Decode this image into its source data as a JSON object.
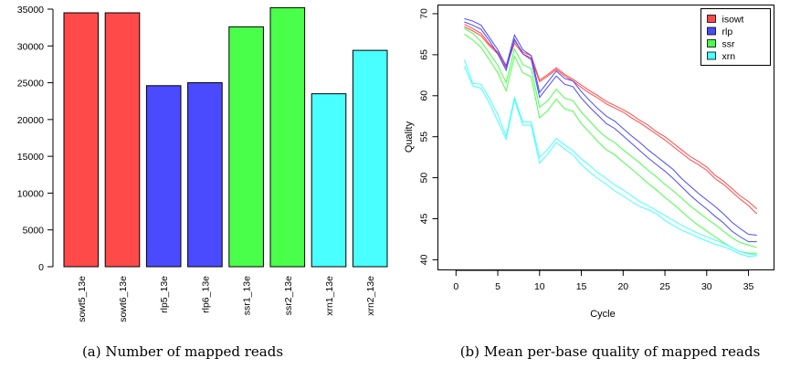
{
  "chart_data": [
    {
      "type": "bar",
      "categories": [
        "sowt5_13e",
        "sowt6_13e",
        "rlp5_13e",
        "rlp6_13e",
        "ssr1_13e",
        "ssr2_13e",
        "xrn1_13e",
        "xrn2_13e"
      ],
      "values": [
        34500,
        34500,
        24600,
        25000,
        32600,
        35200,
        23500,
        29400
      ],
      "colors": [
        "#ff4a4a",
        "#ff4a4a",
        "#4a4aff",
        "#4a4aff",
        "#4aff4a",
        "#4aff4a",
        "#4affff",
        "#4affff"
      ],
      "ylim": [
        0,
        35000
      ],
      "yticks": [
        0,
        5000,
        10000,
        15000,
        20000,
        25000,
        30000,
        35000
      ],
      "caption": "(a)  Number of mapped reads"
    },
    {
      "type": "line",
      "xlabel": "Cycle",
      "ylabel": "Quality",
      "xlim": [
        0,
        36
      ],
      "ylim": [
        40,
        70
      ],
      "xticks": [
        0,
        5,
        10,
        15,
        20,
        25,
        30,
        35
      ],
      "yticks": [
        40,
        45,
        50,
        55,
        60,
        65,
        70
      ],
      "legend": {
        "position": "top-right",
        "entries": [
          {
            "label": "isowt",
            "color": "#ff4a4a"
          },
          {
            "label": "rlp",
            "color": "#4a4aff"
          },
          {
            "label": "ssr",
            "color": "#4aff4a"
          },
          {
            "label": "xrn",
            "color": "#4affff"
          }
        ]
      },
      "series": [
        {
          "group": "isowt",
          "color": "#ff4a4a",
          "values": [
            68.7,
            68.2,
            67.6,
            66.3,
            65.3,
            63.7,
            66.7,
            65.3,
            64.9,
            61.9,
            62.6,
            63.4,
            62.6,
            62.0,
            61.3,
            60.6,
            60.0,
            59.3,
            58.8,
            58.3,
            57.7,
            57.0,
            56.4,
            55.6,
            55.0,
            54.2,
            53.4,
            52.6,
            52.0,
            51.3,
            50.3,
            49.6,
            48.7,
            47.8,
            47.1,
            46.2
          ]
        },
        {
          "group": "isowt",
          "color": "#ff4a4a",
          "values": [
            68.4,
            67.9,
            67.3,
            66.1,
            65.1,
            63.4,
            66.4,
            65.1,
            64.6,
            61.7,
            62.4,
            63.2,
            62.4,
            61.8,
            61.0,
            60.3,
            59.7,
            59.0,
            58.5,
            58.0,
            57.3,
            56.7,
            56.0,
            55.3,
            54.6,
            53.8,
            53.0,
            52.2,
            51.6,
            50.9,
            49.9,
            49.2,
            48.3,
            47.4,
            46.6,
            45.6
          ]
        },
        {
          "group": "rlp",
          "color": "#4a4aff",
          "values": [
            69.4,
            69.1,
            68.6,
            67.1,
            65.6,
            63.6,
            67.4,
            65.6,
            64.9,
            60.4,
            61.7,
            63.0,
            62.1,
            61.8,
            60.5,
            59.4,
            58.4,
            57.5,
            56.9,
            56.0,
            55.1,
            54.3,
            53.4,
            52.6,
            51.8,
            51.0,
            49.9,
            49.0,
            48.1,
            47.3,
            46.5,
            45.6,
            44.6,
            43.8,
            43.1,
            43.0
          ]
        },
        {
          "group": "rlp",
          "color": "#4a4aff",
          "values": [
            69.0,
            68.6,
            68.1,
            66.7,
            65.1,
            63.1,
            66.9,
            65.1,
            64.4,
            59.8,
            61.1,
            62.4,
            61.4,
            61.1,
            59.7,
            58.6,
            57.6,
            56.6,
            56.0,
            55.1,
            54.2,
            53.3,
            52.4,
            51.6,
            50.8,
            49.9,
            48.9,
            47.9,
            47.0,
            46.2,
            45.3,
            44.5,
            43.5,
            42.8,
            42.2,
            42.2
          ]
        },
        {
          "group": "ssr",
          "color": "#4aff4a",
          "values": [
            68.2,
            67.6,
            66.6,
            65.2,
            63.7,
            61.6,
            65.7,
            63.8,
            63.3,
            58.6,
            59.4,
            60.8,
            59.7,
            59.4,
            58.0,
            56.9,
            55.8,
            54.9,
            54.3,
            53.4,
            52.6,
            51.8,
            50.9,
            50.1,
            49.2,
            48.4,
            47.5,
            46.6,
            45.8,
            45.0,
            44.3,
            43.5,
            42.7,
            42.1,
            41.8,
            41.5
          ]
        },
        {
          "group": "ssr",
          "color": "#4aff4a",
          "values": [
            67.5,
            66.8,
            65.9,
            64.4,
            62.8,
            60.6,
            64.8,
            62.8,
            62.3,
            57.3,
            58.2,
            59.6,
            58.4,
            58.1,
            56.6,
            55.5,
            54.4,
            53.4,
            52.8,
            51.9,
            51.1,
            50.2,
            49.3,
            48.5,
            47.6,
            46.8,
            45.9,
            45.0,
            44.2,
            43.5,
            42.8,
            42.1,
            41.5,
            41.0,
            40.8,
            40.8
          ]
        },
        {
          "group": "xrn",
          "color": "#4affff",
          "values": [
            64.4,
            61.5,
            61.4,
            59.7,
            57.7,
            55.1,
            59.8,
            56.8,
            56.8,
            52.5,
            53.5,
            54.8,
            54.0,
            53.3,
            52.3,
            51.5,
            50.6,
            49.9,
            49.1,
            48.5,
            47.8,
            47.1,
            46.6,
            46.0,
            45.4,
            44.8,
            44.2,
            43.7,
            43.2,
            42.8,
            42.4,
            42.0,
            41.5,
            41.0,
            40.7,
            40.6
          ]
        },
        {
          "group": "xrn",
          "color": "#4affff",
          "values": [
            63.6,
            61.2,
            60.9,
            59.1,
            56.9,
            54.7,
            59.5,
            56.4,
            56.4,
            51.8,
            52.9,
            54.3,
            53.5,
            52.8,
            51.6,
            50.7,
            49.9,
            49.2,
            48.4,
            47.8,
            47.1,
            46.5,
            46.1,
            45.6,
            44.8,
            44.2,
            43.6,
            43.2,
            42.7,
            42.3,
            41.9,
            41.6,
            41.2,
            40.7,
            40.4,
            40.5
          ]
        }
      ],
      "caption": "(b)  Mean per-base quality of mapped reads"
    }
  ]
}
